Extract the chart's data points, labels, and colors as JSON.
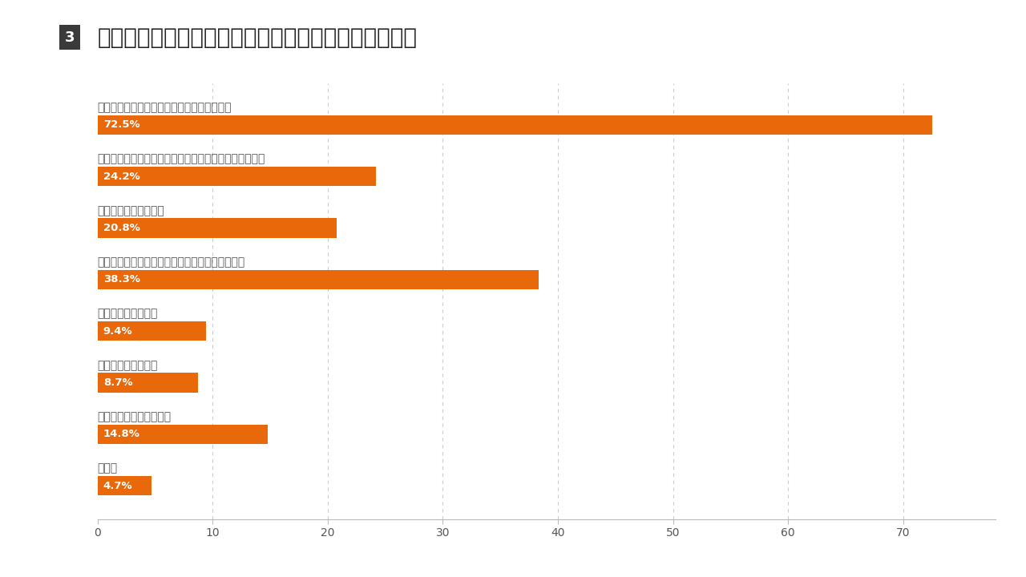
{
  "title": "地方に住みたい理由を教えてください。（複数回答）",
  "title_number": "3",
  "categories": [
    "時間の流れがゆっくりとした中で過ごしたい",
    "レジャー、釣りやサーフィン、スキーなどを楽しみたい",
    "自分で食物を育てたい",
    "その土地ならではの健康的な食べ物を楽しみたい",
    "地方で職を探したい",
    "子供の教育のために",
    "戸建ての家が欲しいから",
    "その他"
  ],
  "values": [
    72.5,
    24.2,
    20.8,
    38.3,
    9.4,
    8.7,
    14.8,
    4.7
  ],
  "labels": [
    "72.5%",
    "24.2%",
    "20.8%",
    "38.3%",
    "9.4%",
    "8.7%",
    "14.8%",
    "4.7%"
  ],
  "bar_color": "#E8680A",
  "background_color": "#FFFFFF",
  "xlim": [
    0,
    78
  ],
  "xticks": [
    0,
    10,
    20,
    30,
    40,
    50,
    60,
    70
  ],
  "grid_color": "#CCCCCC",
  "cat_fontsize": 10,
  "value_fontsize": 9.5,
  "title_fontsize": 20,
  "number_bg_color": "#3A3A3A",
  "number_color": "#FFFFFF",
  "text_color": "#555555",
  "bar_height": 0.38
}
